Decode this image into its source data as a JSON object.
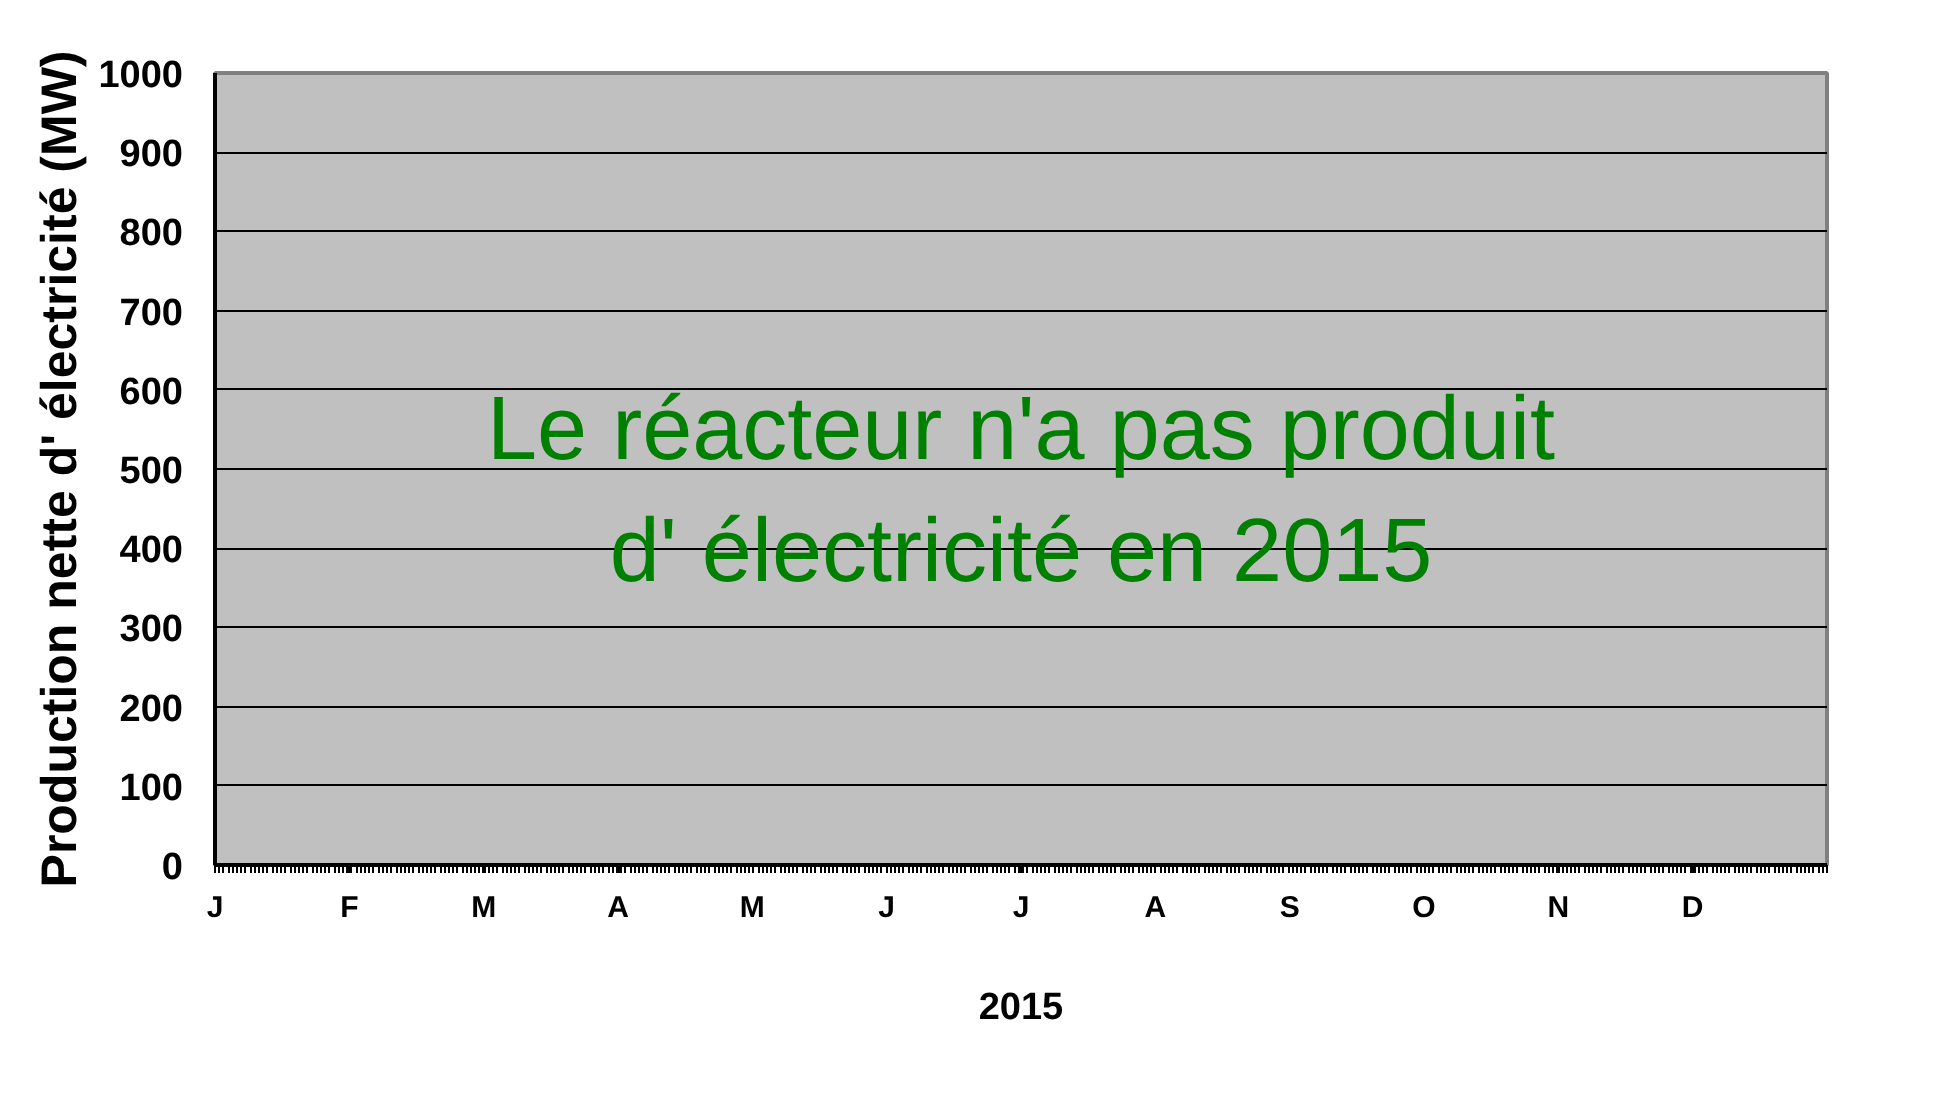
{
  "chart_data": {
    "type": "line",
    "categories": [
      "J",
      "F",
      "M",
      "A",
      "M",
      "J",
      "J",
      "A",
      "S",
      "O",
      "N",
      "D"
    ],
    "values": [
      null,
      null,
      null,
      null,
      null,
      null,
      null,
      null,
      null,
      null,
      null,
      null
    ],
    "xlabel": "2015",
    "ylabel": "Production nette d' électricité (MW)",
    "annotations": [
      "Le réacteur n'a pas produit\nd' électricité en 2015"
    ],
    "ylim": [
      0,
      1000
    ],
    "yticks": [
      0,
      100,
      200,
      300,
      400,
      500,
      600,
      700,
      800,
      900,
      1000
    ],
    "grid": "y"
  }
}
